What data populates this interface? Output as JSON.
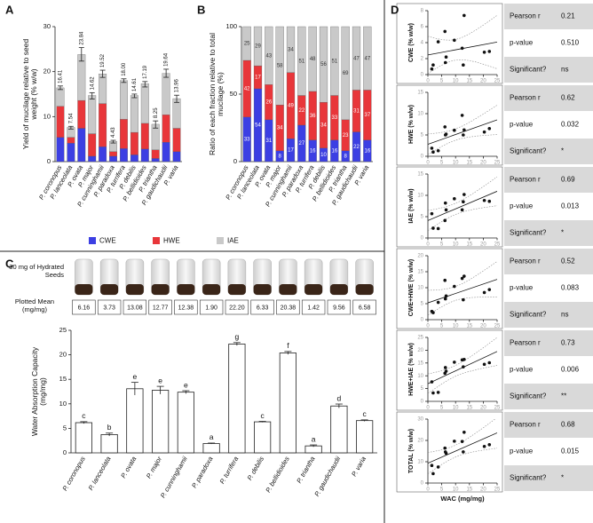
{
  "chart_data": [
    {
      "type": "stacked_bar",
      "panel": "A",
      "ylabel": "Yield of mucilage relative to seed weight (% w/w)",
      "categories": [
        "P. coronopus",
        "P. lanceolata",
        "P. ovata",
        "P. major",
        "P. cunninghamii",
        "P. paradoxa",
        "P. turrifera",
        "P. debilis",
        "P. bellidioides",
        "P. triantha",
        "P. gaudichaudii",
        "P. varia"
      ],
      "series": [
        {
          "name": "CWE",
          "color": "#3c3fe3",
          "values": [
            5.4,
            4.1,
            7.4,
            1.2,
            3.3,
            1.2,
            2.9,
            1.5,
            2.8,
            0.7,
            4.3,
            2.2
          ]
        },
        {
          "name": "HWE",
          "color": "#e8363a",
          "values": [
            6.9,
            1.3,
            6.2,
            5.0,
            9.6,
            1.0,
            6.5,
            5.0,
            5.7,
            1.9,
            6.1,
            5.2
          ]
        },
        {
          "name": "IAE",
          "color": "#c9c9c9",
          "values": [
            4.1,
            2.2,
            10.2,
            8.5,
            6.6,
            2.3,
            8.6,
            8.2,
            8.8,
            5.7,
            9.2,
            6.6
          ]
        }
      ],
      "totals": [
        16.41,
        7.54,
        23.84,
        14.62,
        19.52,
        4.43,
        18,
        14.61,
        17.19,
        8.25,
        19.64,
        13.96
      ],
      "total_labels": [
        "16.41",
        "7.54",
        "23.84",
        "14.62",
        "19.52",
        "4.43",
        "18.00",
        "14.61",
        "17.19",
        "8.25",
        "19.64",
        "13.96"
      ],
      "errors": [
        0.4,
        0.3,
        1.5,
        0.7,
        0.8,
        0.3,
        0.4,
        0.4,
        0.6,
        0.8,
        0.9,
        0.8
      ],
      "ylim": [
        0,
        30
      ],
      "yticks": [
        0,
        10,
        20,
        30
      ],
      "legend": "bottom"
    },
    {
      "type": "stacked_bar",
      "panel": "B",
      "ylabel": "Ratio of each fraction relative to total mucilage (%)",
      "categories": [
        "P. coronopus",
        "P. lanceolata",
        "P. ovata",
        "P. major",
        "P. cunninghamii",
        "P. paradoxa",
        "P. turrifera",
        "P. debilis",
        "P. bellidioides",
        "P. triantha",
        "P. gaudichaudii",
        "P. varia"
      ],
      "series": [
        {
          "color": "#3c3fe3",
          "values": [
            33,
            54,
            31,
            8,
            17,
            27,
            16,
            10,
            16,
            8,
            22,
            16
          ]
        },
        {
          "color": "#e8363a",
          "values": [
            42,
            17,
            26,
            34,
            49,
            22,
            36,
            34,
            33,
            23,
            31,
            37
          ]
        },
        {
          "color": "#c9c9c9",
          "values": [
            25,
            29,
            43,
            58,
            34,
            51,
            48,
            56,
            51,
            69,
            47,
            47
          ]
        }
      ],
      "data_labels": true,
      "ylim": [
        0,
        100
      ],
      "yticks": [
        0,
        50,
        100
      ]
    },
    {
      "type": "bar",
      "panel": "C",
      "photo_label": "30 mg of Hydrated Seeds",
      "table_label": "Plotted Mean (mg/mg)",
      "ylabel": "Water Absorption Capacity (mg/mg)",
      "categories": [
        "P. coronopus",
        "P. lanceolata",
        "P. ovata",
        "P. major",
        "P. cunninghamii",
        "P. paradoxa",
        "P. turrifera",
        "P. debilis",
        "P. bellidioides",
        "P. triantha",
        "P. gaudichaudii",
        "P. varia"
      ],
      "values": [
        6.16,
        3.73,
        13.08,
        12.77,
        12.38,
        1.9,
        22.2,
        6.33,
        20.38,
        1.42,
        9.56,
        6.58
      ],
      "value_labels": [
        "6.16",
        "3.73",
        "13.08",
        "12.77",
        "12.38",
        "1.90",
        "22.20",
        "6.33",
        "20.38",
        "1.42",
        "9.56",
        "6.58"
      ],
      "errors": [
        0.2,
        0.3,
        1.3,
        0.8,
        0.3,
        0.1,
        0.3,
        0.1,
        0.3,
        0.2,
        0.4,
        0.15
      ],
      "letters": [
        "c",
        "b",
        "e",
        "e",
        "e",
        "a",
        "g",
        "c",
        "f",
        "a",
        "d",
        "c"
      ],
      "color": "#ffffff",
      "ylim": [
        0,
        25
      ],
      "yticks": [
        0,
        5,
        10,
        15,
        20,
        25
      ]
    },
    {
      "type": "scatter",
      "panel": "D",
      "ylabel": "CWE (% w/w)",
      "x": [
        6.16,
        3.73,
        13.08,
        12.77,
        12.38,
        1.9,
        22.2,
        6.33,
        20.38,
        1.42,
        9.56,
        6.58
      ],
      "y": [
        5.4,
        4.1,
        7.4,
        1.2,
        3.3,
        1.2,
        2.9,
        1.5,
        2.8,
        0.7,
        4.3,
        2.2
      ],
      "xlim": [
        0,
        25
      ],
      "xticks": [
        0,
        5,
        10,
        15,
        20,
        25
      ],
      "ylim": [
        0,
        8
      ],
      "yticks": [
        0,
        2,
        4,
        6,
        8
      ],
      "fit": true,
      "stats": [
        [
          "Pearson r",
          "0.21"
        ],
        [
          "p-value",
          "0.510"
        ],
        [
          "Significant?",
          "ns"
        ]
      ]
    },
    {
      "type": "scatter",
      "ylabel": "HWE (% w/w)",
      "x": [
        6.16,
        3.73,
        13.08,
        12.77,
        12.38,
        1.9,
        22.2,
        6.33,
        20.38,
        1.42,
        9.56,
        6.58
      ],
      "y": [
        6.9,
        1.3,
        6.2,
        5.0,
        9.6,
        1.0,
        6.5,
        5.0,
        5.7,
        1.9,
        6.1,
        5.2
      ],
      "xlim": [
        0,
        25
      ],
      "xticks": [
        0,
        5,
        10,
        15,
        20,
        25
      ],
      "ylim": [
        0,
        15
      ],
      "yticks": [
        0,
        5,
        10,
        15
      ],
      "fit": true,
      "stats": [
        [
          "Pearson r",
          "0.62"
        ],
        [
          "p-value",
          "0.032"
        ],
        [
          "Significant?",
          "*"
        ]
      ]
    },
    {
      "type": "scatter",
      "ylabel": "IAE (% w/w)",
      "x": [
        6.16,
        3.73,
        13.08,
        12.77,
        12.38,
        1.9,
        22.2,
        6.33,
        20.38,
        1.42,
        9.56,
        6.58
      ],
      "y": [
        4.1,
        2.2,
        10.2,
        8.5,
        6.6,
        2.3,
        8.6,
        8.2,
        8.8,
        5.7,
        9.2,
        6.6
      ],
      "xlim": [
        0,
        25
      ],
      "xticks": [
        0,
        5,
        10,
        15,
        20,
        25
      ],
      "ylim": [
        0,
        15
      ],
      "yticks": [
        0,
        5,
        10,
        15
      ],
      "fit": true,
      "stats": [
        [
          "Pearson r",
          "0.69"
        ],
        [
          "p-value",
          "0.013"
        ],
        [
          "Significant?",
          "*"
        ]
      ]
    },
    {
      "type": "scatter",
      "ylabel": "CWE+HWE (% w/w)",
      "x": [
        6.16,
        3.73,
        13.08,
        12.77,
        12.38,
        1.9,
        22.2,
        6.33,
        20.38,
        1.42,
        9.56,
        6.58
      ],
      "y": [
        12.3,
        5.4,
        13.6,
        6.2,
        12.9,
        2.2,
        9.4,
        6.5,
        8.5,
        2.6,
        10.4,
        7.4
      ],
      "xlim": [
        0,
        25
      ],
      "xticks": [
        0,
        5,
        10,
        15,
        20,
        25
      ],
      "ylim": [
        0,
        20
      ],
      "yticks": [
        0,
        5,
        10,
        15,
        20
      ],
      "fit": true,
      "stats": [
        [
          "Pearson r",
          "0.52"
        ],
        [
          "p-value",
          "0.083"
        ],
        [
          "Significant?",
          "ns"
        ]
      ]
    },
    {
      "type": "scatter",
      "ylabel": "HWE+IAE (% w/w)",
      "x": [
        6.16,
        3.73,
        13.08,
        12.77,
        12.38,
        1.9,
        22.2,
        6.33,
        20.38,
        1.42,
        9.56,
        6.58
      ],
      "y": [
        11.0,
        3.5,
        16.4,
        13.5,
        16.2,
        3.3,
        15.1,
        13.2,
        14.5,
        7.6,
        15.3,
        11.8
      ],
      "xlim": [
        0,
        25
      ],
      "xticks": [
        0,
        5,
        10,
        15,
        20,
        25
      ],
      "ylim": [
        0,
        25
      ],
      "yticks": [
        0,
        5,
        10,
        15,
        20,
        25
      ],
      "fit": true,
      "stats": [
        [
          "Pearson r",
          "0.73"
        ],
        [
          "p-value",
          "0.006"
        ],
        [
          "Significant?",
          "**"
        ]
      ]
    },
    {
      "type": "scatter",
      "ylabel": "TOTAL (% w/w)",
      "xlabel": "WAC (mg/mg)",
      "x": [
        6.16,
        3.73,
        13.08,
        12.77,
        12.38,
        1.9,
        22.2,
        6.33,
        20.38,
        1.42,
        9.56,
        6.58
      ],
      "y": [
        16.41,
        7.54,
        23.84,
        14.62,
        19.52,
        4.43,
        18,
        14.61,
        17.19,
        8.25,
        19.64,
        13.96
      ],
      "xlim": [
        0,
        25
      ],
      "xticks": [
        0,
        5,
        10,
        15,
        20,
        25
      ],
      "ylim": [
        0,
        30
      ],
      "yticks": [
        0,
        10,
        20,
        30
      ],
      "fit": true,
      "stats": [
        [
          "Pearson r",
          "0.68"
        ],
        [
          "p-value",
          "0.015"
        ],
        [
          "Significant?",
          "*"
        ]
      ]
    }
  ]
}
